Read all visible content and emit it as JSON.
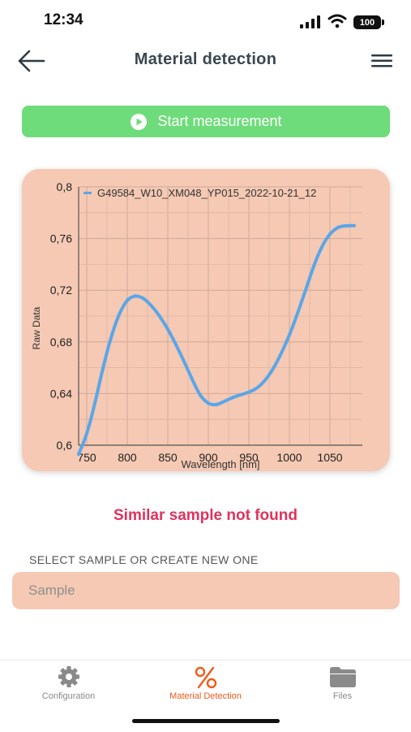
{
  "status_bar": {
    "time": "12:34",
    "battery": "100"
  },
  "header": {
    "title": "Material detection",
    "back_icon": "arrow-left-icon",
    "menu_icon": "hamburger-menu-icon"
  },
  "start_button": {
    "label": "Start measurement",
    "icon": "play-circle-icon"
  },
  "chart_data": {
    "type": "line",
    "title": "",
    "xlabel": "Wavelength [nm]",
    "ylabel": "Raw Data",
    "xlim": [
      740,
      1090
    ],
    "ylim": [
      0.6,
      0.8
    ],
    "y_ticks": [
      "0,6",
      "0,64",
      "0,68",
      "0,72",
      "0,76",
      "0,8"
    ],
    "x_ticks": [
      "750",
      "800",
      "850",
      "900",
      "950",
      "1000",
      "1050"
    ],
    "grid": true,
    "legend": "top",
    "series": [
      {
        "name": "G49584_W10_XM048_YP015_2022-10-21_12",
        "color": "#5aa6e8",
        "x": [
          740,
          750,
          760,
          770,
          780,
          790,
          800,
          810,
          820,
          830,
          840,
          850,
          860,
          870,
          880,
          890,
          900,
          910,
          920,
          930,
          940,
          950,
          960,
          970,
          980,
          990,
          1000,
          1010,
          1020,
          1030,
          1040,
          1050,
          1060,
          1070,
          1080
        ],
        "values": [
          0.593,
          0.608,
          0.632,
          0.66,
          0.684,
          0.702,
          0.713,
          0.716,
          0.714,
          0.708,
          0.7,
          0.69,
          0.678,
          0.665,
          0.651,
          0.638,
          0.632,
          0.631,
          0.634,
          0.637,
          0.639,
          0.641,
          0.644,
          0.65,
          0.659,
          0.671,
          0.685,
          0.702,
          0.72,
          0.739,
          0.754,
          0.764,
          0.769,
          0.77,
          0.77
        ]
      }
    ]
  },
  "status_message": "Similar sample not found",
  "sample_select": {
    "label": "SELECT SAMPLE OR CREATE NEW ONE",
    "placeholder": "Sample",
    "value": ""
  },
  "bottom_nav": {
    "items": [
      {
        "label": "Configuration",
        "icon": "gear-icon",
        "active": false
      },
      {
        "label": "Material Detection",
        "icon": "percent-icon",
        "active": true
      },
      {
        "label": "Files",
        "icon": "folder-icon",
        "active": false
      }
    ]
  },
  "colors": {
    "accent": "#f05a1a",
    "start_green": "#6edc7a",
    "card_bg": "#f5c9b3",
    "alert": "#e0325c",
    "line": "#5aa6e8"
  }
}
